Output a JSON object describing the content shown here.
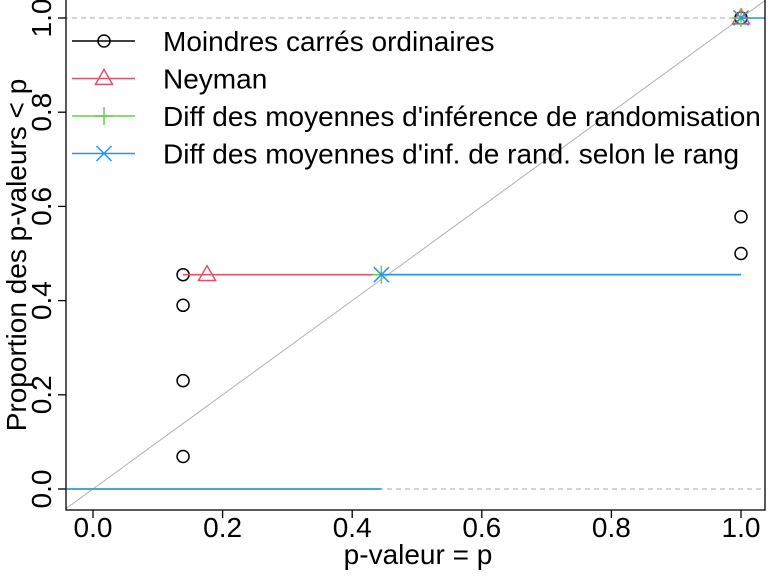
{
  "chart_data": {
    "type": "line",
    "title": "",
    "xlabel": "p-valeur = p",
    "ylabel": "Proportion des p-valeurs < p",
    "xlim": [
      -0.04,
      1.04
    ],
    "ylim": [
      -0.04,
      1.0
    ],
    "xticks": [
      {
        "value": 0.0,
        "label": "0.0"
      },
      {
        "value": 0.2,
        "label": "0.2"
      },
      {
        "value": 0.4,
        "label": "0.4"
      },
      {
        "value": 0.6,
        "label": "0.6"
      },
      {
        "value": 0.8,
        "label": "0.8"
      },
      {
        "value": 1.0,
        "label": "1.0"
      }
    ],
    "yticks": [
      {
        "value": 0.0,
        "label": "0.0"
      },
      {
        "value": 0.2,
        "label": "0.2"
      },
      {
        "value": 0.4,
        "label": "0.4"
      },
      {
        "value": 0.6,
        "label": "0.6"
      },
      {
        "value": 0.8,
        "label": "0.8"
      },
      {
        "value": 1.0,
        "label": "1.0"
      }
    ],
    "reference_lines": {
      "diagonal": true,
      "hlines": [
        0,
        1
      ]
    },
    "legend_position": "top-left",
    "series": [
      {
        "name": "Moindres carrés ordinaires",
        "color": "#000000",
        "marker": "circle",
        "steps": [
          {
            "x0": 0.139,
            "x1": 0.14,
            "y": 0.455
          }
        ],
        "points": [
          {
            "x": 0.139,
            "y": 0.069
          },
          {
            "x": 0.139,
            "y": 0.23
          },
          {
            "x": 0.139,
            "y": 0.39
          },
          {
            "x": 0.139,
            "y": 0.455
          },
          {
            "x": 1.0,
            "y": 0.5
          },
          {
            "x": 1.0,
            "y": 0.578
          },
          {
            "x": 1.0,
            "y": 1.0
          }
        ]
      },
      {
        "name": "Neyman",
        "color": "#DF536B",
        "marker": "triangle",
        "steps": [
          {
            "x0": 0.139,
            "x1": 0.176,
            "y": 0.455
          },
          {
            "x0": 0.176,
            "x1": 0.445,
            "y": 0.455
          }
        ],
        "points": [
          {
            "x": 0.176,
            "y": 0.455
          },
          {
            "x": 1.0,
            "y": 1.0
          }
        ]
      },
      {
        "name": "Diff des moyennes d'inférence de randomisation",
        "color": "#61D04F",
        "marker": "plus",
        "steps": [
          {
            "x0": -0.04,
            "x1": 0.445,
            "y": 0.0
          },
          {
            "x0": 0.445,
            "x1": 1.0,
            "y": 0.455
          }
        ],
        "points": [
          {
            "x": 0.445,
            "y": 0.455
          },
          {
            "x": 1.0,
            "y": 1.0
          }
        ]
      },
      {
        "name": "Diff des moyennes d'inf. de rand. selon le rang",
        "color": "#2297E6",
        "marker": "cross",
        "steps": [
          {
            "x0": -0.04,
            "x1": 0.445,
            "y": 0.0
          },
          {
            "x0": 0.445,
            "x1": 1.0,
            "y": 0.455
          },
          {
            "x0": 1.0,
            "x1": 1.04,
            "y": 1.0
          }
        ],
        "points": [
          {
            "x": 0.445,
            "y": 0.455
          },
          {
            "x": 1.0,
            "y": 1.0
          }
        ]
      }
    ]
  }
}
